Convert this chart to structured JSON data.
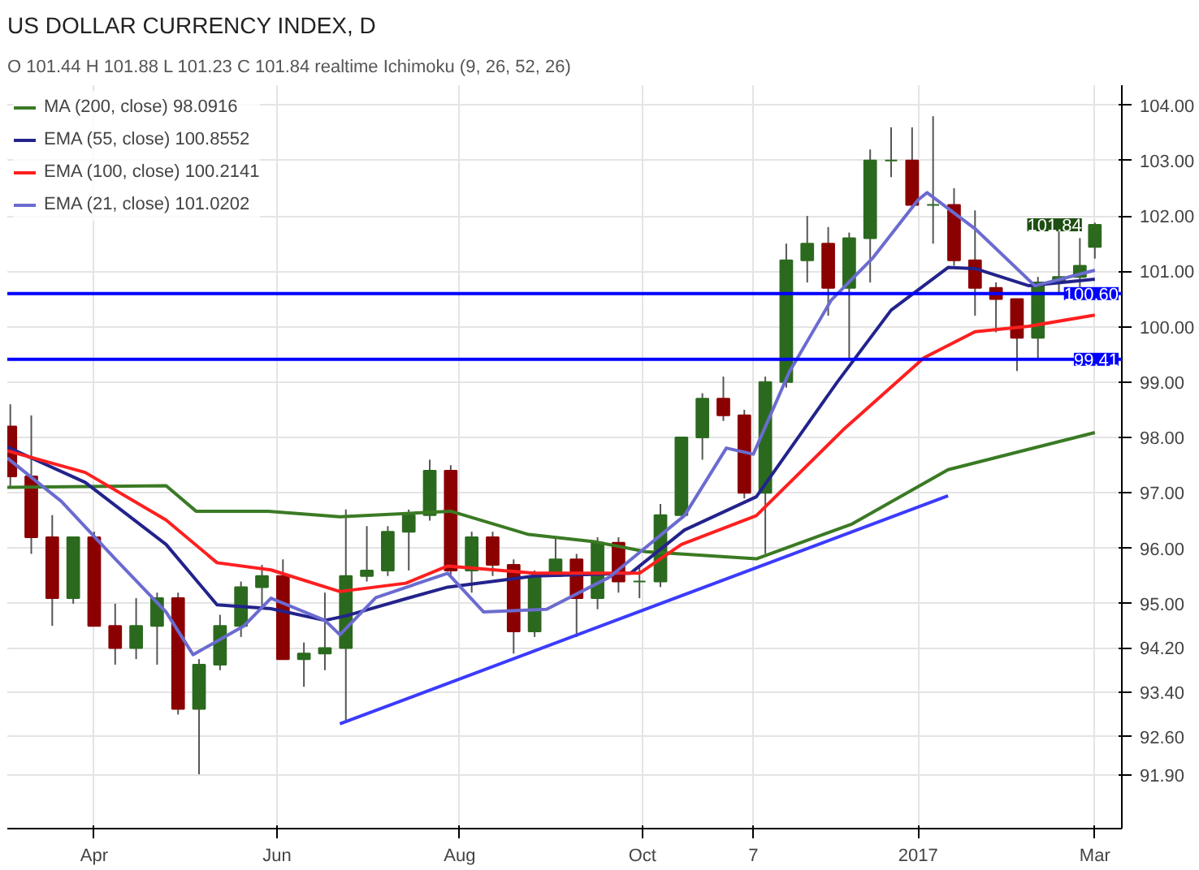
{
  "chart_data": {
    "type": "candlestick",
    "title": "US DOLLAR CURRENCY INDEX, D",
    "annotations": [
      "O 101.44 H 101.88 L 101.23 C 101.84",
      "realtime",
      "Ichimoku (9, 26, 52, 26)",
      {
        "text": "101.84",
        "x": "2017-03-01",
        "y": 101.84
      }
    ],
    "x": [
      "2016-03-04",
      "2016-03-11",
      "2016-03-18",
      "2016-03-25",
      "2016-04-01",
      "2016-04-08",
      "2016-04-15",
      "2016-04-22",
      "2016-04-29",
      "2016-05-06",
      "2016-05-13",
      "2016-05-20",
      "2016-05-27",
      "2016-06-03",
      "2016-06-10",
      "2016-06-17",
      "2016-06-24",
      "2016-07-01",
      "2016-07-08",
      "2016-07-15",
      "2016-07-22",
      "2016-07-29",
      "2016-08-05",
      "2016-08-12",
      "2016-08-19",
      "2016-08-26",
      "2016-09-02",
      "2016-09-09",
      "2016-09-16",
      "2016-09-23",
      "2016-09-30",
      "2016-10-07",
      "2016-10-14",
      "2016-10-21",
      "2016-10-28",
      "2016-11-04",
      "2016-11-11",
      "2016-11-18",
      "2016-11-25",
      "2016-12-02",
      "2016-12-09",
      "2016-12-16",
      "2016-12-23",
      "2016-12-30",
      "2017-01-06",
      "2017-01-13",
      "2017-01-20",
      "2017-01-27",
      "2017-02-03",
      "2017-02-10",
      "2017-02-17",
      "2017-02-24",
      "2017-03-01"
    ],
    "ohlc": [
      [
        98.2,
        98.6,
        97.1,
        97.3
      ],
      [
        97.3,
        98.4,
        95.9,
        96.2
      ],
      [
        96.2,
        96.6,
        94.6,
        95.1
      ],
      [
        95.1,
        96.2,
        95.0,
        96.2
      ],
      [
        96.2,
        96.3,
        94.6,
        94.6
      ],
      [
        94.6,
        95.0,
        93.9,
        94.2
      ],
      [
        94.2,
        95.1,
        94.0,
        94.6
      ],
      [
        94.6,
        95.2,
        93.9,
        95.1
      ],
      [
        95.1,
        95.2,
        93.0,
        93.1
      ],
      [
        93.1,
        94.0,
        91.92,
        93.9
      ],
      [
        93.9,
        94.8,
        93.8,
        94.6
      ],
      [
        94.6,
        95.4,
        94.4,
        95.3
      ],
      [
        95.3,
        95.7,
        94.9,
        95.5
      ],
      [
        95.5,
        95.8,
        94.0,
        94.0
      ],
      [
        94.0,
        94.3,
        93.5,
        94.1
      ],
      [
        94.1,
        95.2,
        93.8,
        94.2
      ],
      [
        94.2,
        96.7,
        92.9,
        95.5
      ],
      [
        95.5,
        96.4,
        95.4,
        95.6
      ],
      [
        95.6,
        96.4,
        95.5,
        96.3
      ],
      [
        96.3,
        96.7,
        95.6,
        96.6
      ],
      [
        96.6,
        97.6,
        96.5,
        97.4
      ],
      [
        97.4,
        97.5,
        95.5,
        95.6
      ],
      [
        95.6,
        96.3,
        95.2,
        96.2
      ],
      [
        96.2,
        96.3,
        95.5,
        95.7
      ],
      [
        95.7,
        95.8,
        94.1,
        94.5
      ],
      [
        94.5,
        95.6,
        94.4,
        95.5
      ],
      [
        95.5,
        96.2,
        95.5,
        95.8
      ],
      [
        95.8,
        95.9,
        94.4,
        95.1
      ],
      [
        95.1,
        96.2,
        94.9,
        96.1
      ],
      [
        96.1,
        96.2,
        95.2,
        95.4
      ],
      [
        95.4,
        95.7,
        95.1,
        95.4
      ],
      [
        95.4,
        96.8,
        95.3,
        96.6
      ],
      [
        96.6,
        98.0,
        96.6,
        98.0
      ],
      [
        98.0,
        98.8,
        97.6,
        98.7
      ],
      [
        98.7,
        99.1,
        98.3,
        98.4
      ],
      [
        98.4,
        98.5,
        96.9,
        97.0
      ],
      [
        97.0,
        99.1,
        95.9,
        99.0
      ],
      [
        99.0,
        101.5,
        98.9,
        101.2
      ],
      [
        101.2,
        102.0,
        100.8,
        101.5
      ],
      [
        101.5,
        101.8,
        100.2,
        100.7
      ],
      [
        100.7,
        101.7,
        99.4,
        101.6
      ],
      [
        101.6,
        103.2,
        100.8,
        103.0
      ],
      [
        103.0,
        103.6,
        102.7,
        103.0
      ],
      [
        103.0,
        103.6,
        102.2,
        102.2
      ],
      [
        102.2,
        103.8,
        101.5,
        102.2
      ],
      [
        102.2,
        102.5,
        101.1,
        101.2
      ],
      [
        101.2,
        102.1,
        100.2,
        100.7
      ],
      [
        100.7,
        100.8,
        99.9,
        100.5
      ],
      [
        100.5,
        100.5,
        99.2,
        99.8
      ],
      [
        99.8,
        100.9,
        99.4,
        100.8
      ],
      [
        100.8,
        101.8,
        100.6,
        100.9
      ],
      [
        100.9,
        101.6,
        100.7,
        101.1
      ],
      [
        101.44,
        101.88,
        101.23,
        101.84
      ]
    ],
    "colors": [
      "#8b0000",
      "#8b0000",
      "#8b0000",
      "#2b6a1e",
      "#8b0000",
      "#8b0000",
      "#2b6a1e",
      "#2b6a1e",
      "#8b0000",
      "#2b6a1e",
      "#2b6a1e",
      "#2b6a1e",
      "#2b6a1e",
      "#8b0000",
      "#2b6a1e",
      "#2b6a1e",
      "#2b6a1e",
      "#2b6a1e",
      "#2b6a1e",
      "#2b6a1e",
      "#2b6a1e",
      "#8b0000",
      "#2b6a1e",
      "#8b0000",
      "#8b0000",
      "#2b6a1e",
      "#2b6a1e",
      "#8b0000",
      "#2b6a1e",
      "#8b0000",
      "#2b6a1e",
      "#2b6a1e",
      "#2b6a1e",
      "#2b6a1e",
      "#8b0000",
      "#8b0000",
      "#2b6a1e",
      "#2b6a1e",
      "#2b6a1e",
      "#8b0000",
      "#2b6a1e",
      "#2b6a1e",
      "#2b6a1e",
      "#8b0000",
      "#2b6a1e",
      "#8b0000",
      "#8b0000",
      "#8b0000",
      "#8b0000",
      "#2b6a1e",
      "#2b6a1e",
      "#2b6a1e",
      "#2b6a1e"
    ],
    "series": [
      {
        "name": "MA (200, close) 98.0916",
        "type": "line",
        "color": "#3a7a24",
        "x": [
          "2016-03-03",
          "2016-04-25",
          "2016-05-05",
          "2016-05-29",
          "2016-06-22",
          "2016-07-29",
          "2016-08-24",
          "2016-09-15",
          "2016-10-02",
          "2016-11-08",
          "2016-12-10",
          "2017-01-11",
          "2017-03-01"
        ],
        "values": [
          97.1,
          97.13,
          96.67,
          96.67,
          96.57,
          96.67,
          96.25,
          96.12,
          95.94,
          95.81,
          96.44,
          97.42,
          98.09
        ]
      },
      {
        "name": "EMA (55, close) 100.8552",
        "type": "line",
        "color": "#23238c",
        "x": [
          "2016-03-03",
          "2016-03-29",
          "2016-04-25",
          "2016-05-12",
          "2016-05-30",
          "2016-06-17",
          "2016-06-24",
          "2016-07-14",
          "2016-07-28",
          "2016-08-26",
          "2016-09-27",
          "2016-10-15",
          "2016-11-08",
          "2016-12-05",
          "2016-12-23",
          "2017-01-11",
          "2017-01-20",
          "2017-02-07",
          "2017-03-01"
        ],
        "values": [
          97.83,
          97.19,
          96.07,
          94.98,
          94.91,
          94.7,
          94.78,
          95.09,
          95.3,
          95.5,
          95.55,
          96.33,
          96.93,
          99.0,
          100.3,
          101.07,
          101.05,
          100.74,
          100.86
        ]
      },
      {
        "name": "EMA (100, close) 100.2141",
        "type": "line",
        "color": "#ff1f1f",
        "x": [
          "2016-03-03",
          "2016-03-29",
          "2016-04-25",
          "2016-05-12",
          "2016-05-30",
          "2016-06-22",
          "2016-07-14",
          "2016-07-28",
          "2016-08-26",
          "2016-09-30",
          "2016-10-14",
          "2016-11-08",
          "2016-12-07",
          "2017-01-03",
          "2017-01-20",
          "2017-02-07",
          "2017-03-01"
        ],
        "values": [
          97.76,
          97.37,
          96.51,
          95.74,
          95.61,
          95.22,
          95.37,
          95.68,
          95.55,
          95.55,
          96.07,
          96.59,
          98.14,
          99.44,
          99.91,
          100.01,
          100.21
        ]
      },
      {
        "name": "EMA (21, close) 101.0202",
        "type": "line",
        "color": "#6b6bd0",
        "x": [
          "2016-03-03",
          "2016-03-21",
          "2016-04-08",
          "2016-04-25",
          "2016-05-04",
          "2016-05-21",
          "2016-05-30",
          "2016-06-17",
          "2016-06-22",
          "2016-07-04",
          "2016-07-28",
          "2016-08-09",
          "2016-08-30",
          "2016-09-20",
          "2016-10-15",
          "2016-10-29",
          "2016-11-07",
          "2016-11-19",
          "2016-12-03",
          "2016-12-17",
          "2017-01-01",
          "2017-01-04",
          "2017-01-20",
          "2017-02-09",
          "2017-03-01"
        ],
        "values": [
          97.63,
          96.85,
          95.81,
          94.85,
          94.08,
          94.6,
          95.1,
          94.7,
          94.44,
          95.11,
          95.55,
          94.85,
          94.9,
          95.48,
          96.59,
          97.81,
          97.7,
          99.18,
          100.48,
          101.25,
          102.29,
          102.42,
          101.77,
          100.74,
          101.02
        ]
      },
      {
        "type": "line",
        "color": "#3b3bff",
        "x": [
          "2016-06-22",
          "2017-01-11"
        ],
        "values": [
          92.83,
          96.95
        ]
      }
    ],
    "ref_lines": [
      {
        "axis": "y",
        "value": 100.6,
        "label": "100.60",
        "color": "#0000ff"
      },
      {
        "axis": "y",
        "value": 99.41,
        "label": "99.41",
        "color": "#0000ff"
      }
    ],
    "xlim": [
      "2016-03-03",
      "2017-03-10"
    ],
    "xticks": [
      {
        "value": "2016-04-01",
        "label": "Apr"
      },
      {
        "value": "2016-06-01",
        "label": "Jun"
      },
      {
        "value": "2016-08-01",
        "label": "Aug"
      },
      {
        "value": "2016-10-01",
        "label": "Oct"
      },
      {
        "value": "2016-11-07",
        "label": "7"
      },
      {
        "value": "2017-01-01",
        "label": "2017"
      },
      {
        "value": "2017-03-01",
        "label": "Mar"
      }
    ],
    "ylim": [
      90.94,
      104.36
    ],
    "yticks": [
      {
        "value": 91.9,
        "label": "91.90"
      },
      {
        "value": 92.6,
        "label": "92.60"
      },
      {
        "value": 93.4,
        "label": "93.40"
      },
      {
        "value": 94.2,
        "label": "94.20"
      },
      {
        "value": 95,
        "label": "95.00"
      },
      {
        "value": 96,
        "label": "96.00"
      },
      {
        "value": 97,
        "label": "97.00"
      },
      {
        "value": 98,
        "label": "98.00"
      },
      {
        "value": 99,
        "label": "99.00"
      },
      {
        "value": 100,
        "label": "100.00"
      },
      {
        "value": 101,
        "label": "101.00"
      },
      {
        "value": 102,
        "label": "102.00"
      },
      {
        "value": 103,
        "label": "103.00"
      },
      {
        "value": 104,
        "label": "104.00"
      }
    ],
    "grid": true,
    "legend": "top left"
  }
}
